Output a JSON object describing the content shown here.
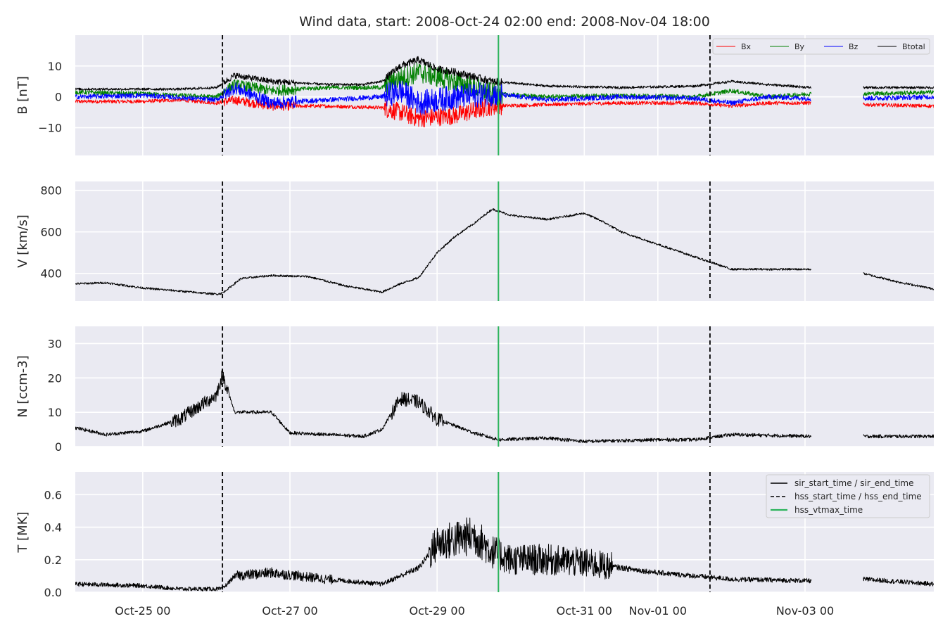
{
  "chart_data": {
    "type": "line",
    "title": "Wind data, start: 2008-Oct-24 02:00  end: 2008-Nov-04 18:00",
    "x_range": [
      "2008-10-24 02:00",
      "2008-11-04 18:00"
    ],
    "x_ticks": [
      {
        "t": "2008-10-25 00:00",
        "label": "Oct-25 00"
      },
      {
        "t": "2008-10-27 00:00",
        "label": "Oct-27 00"
      },
      {
        "t": "2008-10-29 00:00",
        "label": "Oct-29 00"
      },
      {
        "t": "2008-10-31 00:00",
        "label": "Oct-31 00"
      },
      {
        "t": "2008-11-01 00:00",
        "label": "Nov-01 00"
      },
      {
        "t": "2008-11-03 00:00",
        "label": "Nov-03 00"
      }
    ],
    "grid": true,
    "data_gap": [
      "2008-11-03 02:00",
      "2008-11-03 19:00"
    ],
    "markers": [
      {
        "t": "2008-10-26 02:00",
        "style": "dashed",
        "color": "#000000"
      },
      {
        "t": "2008-10-29 20:00",
        "style": "solid",
        "color": "#2bb35b"
      },
      {
        "t": "2008-11-01 17:00",
        "style": "dashed",
        "color": "#000000"
      }
    ],
    "panels": [
      {
        "ylabel": "B [nT]",
        "ylim": [
          -19,
          20
        ],
        "yticks": [
          {
            "v": 10,
            "label": "10"
          },
          {
            "v": 0,
            "label": "0"
          },
          {
            "v": -10,
            "label": "−10"
          }
        ],
        "legend": "top-right",
        "series": [
          {
            "name": "Bx",
            "color": "#ff0000",
            "points": [
              [
                "2008-10-24 02:00",
                -1.5
              ],
              [
                "2008-10-25 00:00",
                -1.5
              ],
              [
                "2008-10-25 12:00",
                -1
              ],
              [
                "2008-10-26 00:00",
                -2
              ],
              [
                "2008-10-26 06:00",
                -1
              ],
              [
                "2008-10-26 18:00",
                -3
              ],
              [
                "2008-10-27 12:00",
                -3
              ],
              [
                "2008-10-28 06:00",
                -3.5
              ],
              [
                "2008-10-28 12:00",
                -5
              ],
              [
                "2008-10-28 18:00",
                -7
              ],
              [
                "2008-10-29 06:00",
                -6
              ],
              [
                "2008-10-29 18:00",
                -3
              ],
              [
                "2008-10-30 12:00",
                -2.5
              ],
              [
                "2008-10-31 12:00",
                -2
              ],
              [
                "2008-11-01 12:00",
                -2
              ],
              [
                "2008-11-02 00:00",
                -3
              ],
              [
                "2008-11-02 12:00",
                -2
              ],
              [
                "2008-11-03 02:00",
                -2
              ],
              [
                "2008-11-03 19:00",
                -2.5
              ],
              [
                "2008-11-04 18:00",
                -3
              ]
            ]
          },
          {
            "name": "By",
            "color": "#008000",
            "points": [
              [
                "2008-10-24 02:00",
                1.5
              ],
              [
                "2008-10-25 00:00",
                1
              ],
              [
                "2008-10-26 00:00",
                0
              ],
              [
                "2008-10-26 06:00",
                4
              ],
              [
                "2008-10-26 18:00",
                2
              ],
              [
                "2008-10-27 12:00",
                3
              ],
              [
                "2008-10-28 06:00",
                3
              ],
              [
                "2008-10-28 12:00",
                6
              ],
              [
                "2008-10-28 18:00",
                8
              ],
              [
                "2008-10-29 06:00",
                5
              ],
              [
                "2008-10-29 18:00",
                1
              ],
              [
                "2008-10-30 12:00",
                0
              ],
              [
                "2008-10-31 12:00",
                0.5
              ],
              [
                "2008-11-01 12:00",
                0
              ],
              [
                "2008-11-02 00:00",
                2
              ],
              [
                "2008-11-02 12:00",
                0
              ],
              [
                "2008-11-03 02:00",
                1
              ],
              [
                "2008-11-03 19:00",
                1
              ],
              [
                "2008-11-04 18:00",
                1.5
              ]
            ]
          },
          {
            "name": "Bz",
            "color": "#0000ff",
            "points": [
              [
                "2008-10-24 02:00",
                0
              ],
              [
                "2008-10-25 00:00",
                0.5
              ],
              [
                "2008-10-26 00:00",
                -1
              ],
              [
                "2008-10-26 06:00",
                3
              ],
              [
                "2008-10-26 18:00",
                -2
              ],
              [
                "2008-10-27 12:00",
                -1
              ],
              [
                "2008-10-28 06:00",
                0
              ],
              [
                "2008-10-28 12:00",
                2
              ],
              [
                "2008-10-28 18:00",
                -2
              ],
              [
                "2008-10-29 06:00",
                0
              ],
              [
                "2008-10-29 18:00",
                1
              ],
              [
                "2008-10-30 12:00",
                -1
              ],
              [
                "2008-10-31 12:00",
                0
              ],
              [
                "2008-11-01 12:00",
                -0.5
              ],
              [
                "2008-11-02 00:00",
                -2
              ],
              [
                "2008-11-02 12:00",
                0
              ],
              [
                "2008-11-03 02:00",
                -0.5
              ],
              [
                "2008-11-03 19:00",
                -0.5
              ],
              [
                "2008-11-04 18:00",
                0
              ]
            ]
          },
          {
            "name": "Btotal",
            "color": "#000000",
            "points": [
              [
                "2008-10-24 02:00",
                2.5
              ],
              [
                "2008-10-25 00:00",
                2.5
              ],
              [
                "2008-10-25 12:00",
                2.5
              ],
              [
                "2008-10-26 00:00",
                3
              ],
              [
                "2008-10-26 06:00",
                7
              ],
              [
                "2008-10-26 18:00",
                5
              ],
              [
                "2008-10-27 12:00",
                4
              ],
              [
                "2008-10-28 00:00",
                4
              ],
              [
                "2008-10-28 06:00",
                5
              ],
              [
                "2008-10-28 12:00",
                10
              ],
              [
                "2008-10-28 18:00",
                12
              ],
              [
                "2008-10-29 00:00",
                9
              ],
              [
                "2008-10-29 06:00",
                8
              ],
              [
                "2008-10-29 18:00",
                5
              ],
              [
                "2008-10-30 12:00",
                3.5
              ],
              [
                "2008-10-31 12:00",
                3
              ],
              [
                "2008-11-01 12:00",
                3.5
              ],
              [
                "2008-11-02 00:00",
                5
              ],
              [
                "2008-11-02 12:00",
                4
              ],
              [
                "2008-11-03 02:00",
                3
              ],
              [
                "2008-11-03 19:00",
                3
              ],
              [
                "2008-11-04 18:00",
                3
              ]
            ]
          }
        ]
      },
      {
        "ylabel": "V [km/s]",
        "ylim": [
          267,
          843
        ],
        "yticks": [
          {
            "v": 800,
            "label": "800"
          },
          {
            "v": 600,
            "label": "600"
          },
          {
            "v": 400,
            "label": "400"
          }
        ],
        "series": [
          {
            "name": "",
            "color": "#000000",
            "points": [
              [
                "2008-10-24 02:00",
                350
              ],
              [
                "2008-10-24 12:00",
                355
              ],
              [
                "2008-10-25 00:00",
                330
              ],
              [
                "2008-10-25 12:00",
                315
              ],
              [
                "2008-10-26 00:00",
                300
              ],
              [
                "2008-10-26 02:00",
                305
              ],
              [
                "2008-10-26 08:00",
                375
              ],
              [
                "2008-10-26 18:00",
                390
              ],
              [
                "2008-10-27 06:00",
                385
              ],
              [
                "2008-10-27 18:00",
                340
              ],
              [
                "2008-10-28 06:00",
                310
              ],
              [
                "2008-10-28 12:00",
                350
              ],
              [
                "2008-10-28 18:00",
                380
              ],
              [
                "2008-10-29 00:00",
                500
              ],
              [
                "2008-10-29 06:00",
                580
              ],
              [
                "2008-10-29 12:00",
                640
              ],
              [
                "2008-10-29 18:00",
                710
              ],
              [
                "2008-10-30 00:00",
                680
              ],
              [
                "2008-10-30 12:00",
                660
              ],
              [
                "2008-10-31 00:00",
                690
              ],
              [
                "2008-10-31 06:00",
                650
              ],
              [
                "2008-10-31 12:00",
                600
              ],
              [
                "2008-11-01 00:00",
                540
              ],
              [
                "2008-11-01 12:00",
                480
              ],
              [
                "2008-11-02 00:00",
                420
              ],
              [
                "2008-11-02 12:00",
                420
              ],
              [
                "2008-11-03 02:00",
                420
              ],
              [
                "2008-11-03 19:00",
                400
              ],
              [
                "2008-11-04 06:00",
                360
              ],
              [
                "2008-11-04 18:00",
                325
              ]
            ]
          }
        ]
      },
      {
        "ylabel": "N [ccm-3]",
        "ylim": [
          0,
          35
        ],
        "yticks": [
          {
            "v": 30,
            "label": "30"
          },
          {
            "v": 20,
            "label": "20"
          },
          {
            "v": 10,
            "label": "10"
          },
          {
            "v": 0,
            "label": "0"
          }
        ],
        "series": [
          {
            "name": "",
            "color": "#000000",
            "points": [
              [
                "2008-10-24 02:00",
                5.5
              ],
              [
                "2008-10-24 12:00",
                3.5
              ],
              [
                "2008-10-25 00:00",
                4.5
              ],
              [
                "2008-10-25 12:00",
                8
              ],
              [
                "2008-10-26 00:00",
                15
              ],
              [
                "2008-10-26 02:00",
                21
              ],
              [
                "2008-10-26 06:00",
                10
              ],
              [
                "2008-10-26 18:00",
                10
              ],
              [
                "2008-10-27 00:00",
                4
              ],
              [
                "2008-10-28 00:00",
                3
              ],
              [
                "2008-10-28 06:00",
                5
              ],
              [
                "2008-10-28 12:00",
                14
              ],
              [
                "2008-10-28 18:00",
                13
              ],
              [
                "2008-10-29 00:00",
                8
              ],
              [
                "2008-10-29 12:00",
                4
              ],
              [
                "2008-10-29 20:00",
                2
              ],
              [
                "2008-10-30 12:00",
                2.5
              ],
              [
                "2008-10-31 00:00",
                1.5
              ],
              [
                "2008-11-01 00:00",
                2
              ],
              [
                "2008-11-01 12:00",
                2
              ],
              [
                "2008-11-02 00:00",
                3.5
              ],
              [
                "2008-11-03 02:00",
                3
              ],
              [
                "2008-11-03 19:00",
                3
              ],
              [
                "2008-11-04 18:00",
                3
              ]
            ]
          }
        ]
      },
      {
        "ylabel": "T [MK]",
        "ylim": [
          0,
          0.74
        ],
        "yticks": [
          {
            "v": 0.6,
            "label": "0.6"
          },
          {
            "v": 0.4,
            "label": "0.4"
          },
          {
            "v": 0.2,
            "label": "0.2"
          },
          {
            "v": 0.0,
            "label": "0.0"
          }
        ],
        "legend": "top-right",
        "legend_entries": [
          {
            "label": "sir_start_time / sir_end_time",
            "style": "solid",
            "color": "#000000"
          },
          {
            "label": "hss_start_time / hss_end_time",
            "style": "dashed",
            "color": "#000000"
          },
          {
            "label": "hss_vtmax_time",
            "style": "solid",
            "color": "#2bb35b"
          }
        ],
        "series": [
          {
            "name": "",
            "color": "#000000",
            "points": [
              [
                "2008-10-24 02:00",
                0.05
              ],
              [
                "2008-10-25 00:00",
                0.04
              ],
              [
                "2008-10-25 12:00",
                0.02
              ],
              [
                "2008-10-26 02:00",
                0.02
              ],
              [
                "2008-10-26 06:00",
                0.1
              ],
              [
                "2008-10-26 18:00",
                0.12
              ],
              [
                "2008-10-27 12:00",
                0.08
              ],
              [
                "2008-10-28 06:00",
                0.05
              ],
              [
                "2008-10-28 12:00",
                0.1
              ],
              [
                "2008-10-28 18:00",
                0.15
              ],
              [
                "2008-10-29 00:00",
                0.3
              ],
              [
                "2008-10-29 12:00",
                0.35
              ],
              [
                "2008-10-29 18:00",
                0.25
              ],
              [
                "2008-10-30 00:00",
                0.2
              ],
              [
                "2008-10-30 12:00",
                0.2
              ],
              [
                "2008-10-31 00:00",
                0.18
              ],
              [
                "2008-10-31 12:00",
                0.15
              ],
              [
                "2008-11-01 00:00",
                0.12
              ],
              [
                "2008-11-01 12:00",
                0.1
              ],
              [
                "2008-11-02 00:00",
                0.08
              ],
              [
                "2008-11-03 02:00",
                0.07
              ],
              [
                "2008-11-03 19:00",
                0.08
              ],
              [
                "2008-11-04 18:00",
                0.05
              ]
            ]
          }
        ]
      }
    ]
  }
}
